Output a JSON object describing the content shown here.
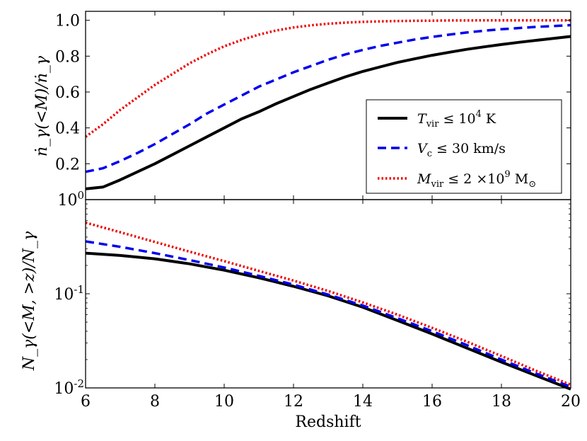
{
  "chart_data": [
    {
      "type": "line",
      "panel": "top",
      "ylabel": "ṅ_γ(<M)/ṅ_γ",
      "xlim": [
        6,
        20
      ],
      "ylim": [
        0,
        1.05
      ],
      "yscale": "linear",
      "xticks": [
        6,
        8,
        10,
        12,
        14,
        16,
        18,
        20
      ],
      "yticks": [
        {
          "value": 0.2,
          "label": "0.2"
        },
        {
          "value": 0.4,
          "label": "0.4"
        },
        {
          "value": 0.6,
          "label": "0.6"
        },
        {
          "value": 0.8,
          "label": "0.8"
        },
        {
          "value": 1.0,
          "label": "1.0"
        }
      ],
      "legend_position": "right",
      "series": [
        {
          "name": "T_vir ≤ 10^4 K",
          "legend_main": "T",
          "legend_sub": "vir",
          "legend_rest": " ≤ 10",
          "legend_sup": "4",
          "legend_tail": "  K",
          "color": "#000000",
          "style": "solid",
          "x": [
            6,
            6.5,
            7,
            7.5,
            8,
            8.5,
            9,
            9.5,
            10,
            10.5,
            11,
            11.5,
            12,
            12.5,
            13,
            13.5,
            14,
            14.5,
            15,
            15.5,
            16,
            16.5,
            17,
            17.5,
            18,
            18.5,
            19,
            19.5,
            20
          ],
          "y": [
            0.06,
            0.07,
            0.11,
            0.155,
            0.2,
            0.25,
            0.3,
            0.35,
            0.4,
            0.45,
            0.49,
            0.535,
            0.575,
            0.615,
            0.65,
            0.685,
            0.715,
            0.74,
            0.765,
            0.785,
            0.805,
            0.822,
            0.838,
            0.852,
            0.865,
            0.877,
            0.888,
            0.899,
            0.91
          ]
        },
        {
          "name": "V_c ≤ 30 km/s",
          "legend_main": "V",
          "legend_sub": "c",
          "legend_rest": " ≤ 30 km/s",
          "legend_sup": "",
          "legend_tail": "",
          "color": "#0000ee",
          "style": "dashed",
          "x": [
            6,
            6.5,
            7,
            7.5,
            8,
            8.5,
            9,
            9.5,
            10,
            10.5,
            11,
            11.5,
            12,
            12.5,
            13,
            13.5,
            14,
            14.5,
            15,
            15.5,
            16,
            16.5,
            17,
            17.5,
            18,
            18.5,
            19,
            19.5,
            20
          ],
          "y": [
            0.155,
            0.175,
            0.215,
            0.26,
            0.31,
            0.365,
            0.42,
            0.48,
            0.53,
            0.58,
            0.63,
            0.67,
            0.71,
            0.745,
            0.78,
            0.81,
            0.835,
            0.857,
            0.875,
            0.893,
            0.907,
            0.92,
            0.932,
            0.942,
            0.95,
            0.957,
            0.963,
            0.968,
            0.973
          ]
        },
        {
          "name": "M_vir ≤ 2×10^9 M_⊙",
          "legend_main": "M",
          "legend_sub": "vir",
          "legend_rest": " ≤ 2 ×10",
          "legend_sup": "9",
          "legend_tail": " M",
          "legend_tail_sub": "⊙",
          "color": "#ee0000",
          "style": "dotted",
          "x": [
            6,
            6.5,
            7,
            7.5,
            8,
            8.5,
            9,
            9.5,
            10,
            10.5,
            11,
            11.5,
            12,
            12.5,
            13,
            13.5,
            14,
            14.5,
            15,
            15.5,
            16,
            16.5,
            17,
            17.5,
            18,
            18.5,
            19,
            19.5,
            20
          ],
          "y": [
            0.35,
            0.42,
            0.5,
            0.57,
            0.64,
            0.7,
            0.76,
            0.81,
            0.855,
            0.89,
            0.92,
            0.943,
            0.96,
            0.972,
            0.981,
            0.987,
            0.991,
            0.994,
            0.996,
            0.997,
            0.998,
            0.999,
            0.999,
            1.0,
            1.0,
            1.0,
            1.0,
            1.0,
            1.0
          ]
        }
      ]
    },
    {
      "type": "line",
      "panel": "bottom",
      "xlabel": "Redshift",
      "ylabel": "N_γ(<M, >z)/N_γ",
      "xlim": [
        6,
        20
      ],
      "ylim": [
        0.01,
        1
      ],
      "yscale": "log",
      "xticks": [
        6,
        8,
        10,
        12,
        14,
        16,
        18,
        20
      ],
      "yticks": [
        {
          "value": 0.01,
          "label_base": "10",
          "label_exp": "-2"
        },
        {
          "value": 0.1,
          "label_base": "10",
          "label_exp": "-1"
        },
        {
          "value": 1,
          "label_base": "10",
          "label_exp": "0"
        }
      ],
      "series": [
        {
          "name": "T_vir ≤ 10^4 K",
          "color": "#000000",
          "style": "solid",
          "x": [
            6,
            7,
            8,
            9,
            10,
            11,
            12,
            13,
            14,
            15,
            16,
            17,
            18,
            19,
            20
          ],
          "y": [
            0.27,
            0.255,
            0.235,
            0.208,
            0.178,
            0.148,
            0.12,
            0.095,
            0.072,
            0.052,
            0.0375,
            0.0265,
            0.0188,
            0.0135,
            0.0097
          ]
        },
        {
          "name": "V_c ≤ 30 km/s",
          "color": "#0000ee",
          "style": "dashed",
          "x": [
            6,
            7,
            8,
            9,
            10,
            11,
            12,
            13,
            14,
            15,
            16,
            17,
            18,
            19,
            20
          ],
          "y": [
            0.36,
            0.315,
            0.27,
            0.228,
            0.19,
            0.155,
            0.125,
            0.098,
            0.075,
            0.055,
            0.04,
            0.0285,
            0.02,
            0.0142,
            0.0103
          ]
        },
        {
          "name": "M_vir ≤ 2×10^9 M_⊙",
          "color": "#ee0000",
          "style": "dotted",
          "x": [
            6,
            7,
            8,
            9,
            10,
            11,
            12,
            13,
            14,
            15,
            16,
            17,
            18,
            19,
            20
          ],
          "y": [
            0.57,
            0.45,
            0.355,
            0.28,
            0.222,
            0.175,
            0.138,
            0.107,
            0.081,
            0.06,
            0.0435,
            0.031,
            0.0218,
            0.0152,
            0.0108
          ]
        }
      ]
    }
  ]
}
